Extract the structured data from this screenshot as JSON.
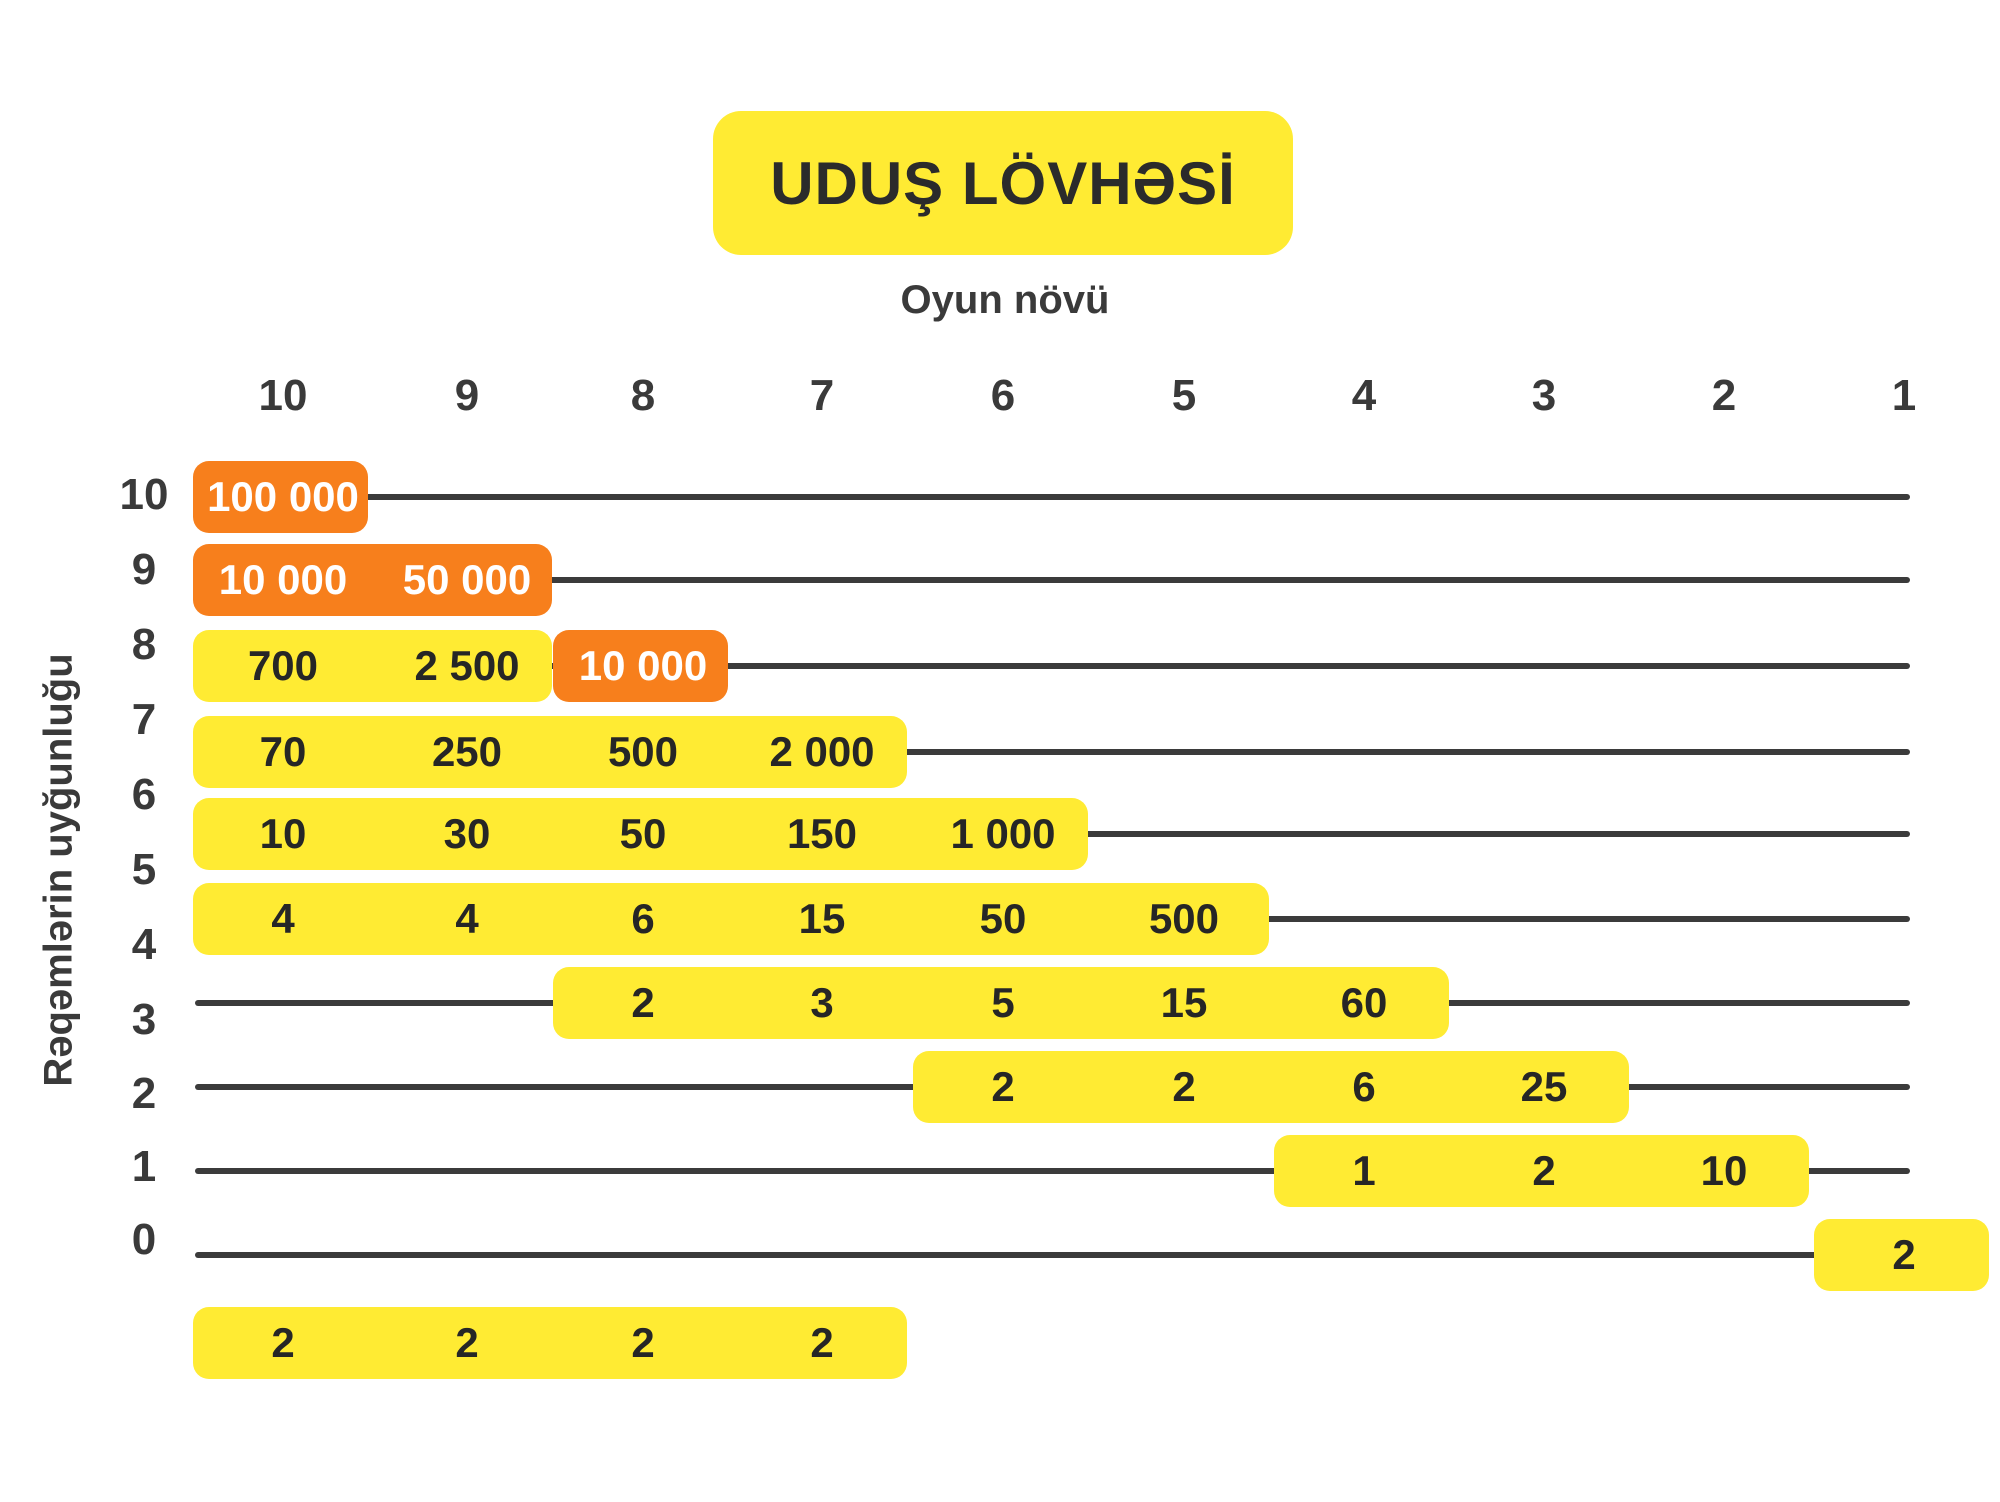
{
  "title": "UDUŞ LÖVHƏSİ",
  "subtitle": "Oyun növü",
  "colors": {
    "yellow": "#FFEB33",
    "orange": "#F77F1C",
    "line": "#3b3b3b",
    "text": "#2f2f2f"
  },
  "chart_data": {
    "type": "table",
    "title": "UDUŞ LÖVHƏSİ",
    "xlabel": "Oyun növü",
    "ylabel": "Rəqəmlərin uyğunluğu",
    "columns": [
      "10",
      "9",
      "8",
      "7",
      "6",
      "5",
      "4",
      "3",
      "2",
      "1"
    ],
    "rows": [
      "10",
      "9",
      "8",
      "7",
      "6",
      "5",
      "4",
      "3",
      "2",
      "1",
      "0"
    ],
    "bands": [
      {
        "row": "10",
        "highlight": "orange",
        "cells": [
          {
            "col": "10",
            "value": "100 000"
          }
        ]
      },
      {
        "row": "9",
        "highlight": "orange",
        "cells": [
          {
            "col": "10",
            "value": "10 000"
          },
          {
            "col": "9",
            "value": "50 000"
          }
        ]
      },
      {
        "row": "8",
        "highlight": "yellow",
        "cells": [
          {
            "col": "10",
            "value": "700"
          },
          {
            "col": "9",
            "value": "2 500"
          }
        ]
      },
      {
        "row": "8",
        "highlight": "orange",
        "cells": [
          {
            "col": "8",
            "value": "10 000"
          }
        ]
      },
      {
        "row": "7",
        "highlight": "yellow",
        "cells": [
          {
            "col": "10",
            "value": "70"
          },
          {
            "col": "9",
            "value": "250"
          },
          {
            "col": "8",
            "value": "500"
          },
          {
            "col": "7",
            "value": "2 000"
          }
        ]
      },
      {
        "row": "6",
        "highlight": "yellow",
        "cells": [
          {
            "col": "10",
            "value": "10"
          },
          {
            "col": "9",
            "value": "30"
          },
          {
            "col": "8",
            "value": "50"
          },
          {
            "col": "7",
            "value": "150"
          },
          {
            "col": "6",
            "value": "1 000"
          }
        ]
      },
      {
        "row": "5",
        "highlight": "yellow",
        "cells": [
          {
            "col": "10",
            "value": "4"
          },
          {
            "col": "9",
            "value": "4"
          },
          {
            "col": "8",
            "value": "6"
          },
          {
            "col": "7",
            "value": "15"
          },
          {
            "col": "6",
            "value": "50"
          },
          {
            "col": "5",
            "value": "500"
          }
        ]
      },
      {
        "row": "4",
        "highlight": "yellow",
        "cells": [
          {
            "col": "8",
            "value": "2"
          },
          {
            "col": "7",
            "value": "3"
          },
          {
            "col": "6",
            "value": "5"
          },
          {
            "col": "5",
            "value": "15"
          },
          {
            "col": "4",
            "value": "60"
          }
        ]
      },
      {
        "row": "3",
        "highlight": "yellow",
        "cells": [
          {
            "col": "6",
            "value": "2"
          },
          {
            "col": "5",
            "value": "2"
          },
          {
            "col": "4",
            "value": "6"
          },
          {
            "col": "3",
            "value": "25"
          }
        ]
      },
      {
        "row": "2",
        "highlight": "yellow",
        "cells": [
          {
            "col": "4",
            "value": "1"
          },
          {
            "col": "3",
            "value": "2"
          },
          {
            "col": "2",
            "value": "10"
          }
        ]
      },
      {
        "row": "1",
        "highlight": "yellow",
        "cells": [
          {
            "col": "1",
            "value": "2"
          }
        ]
      },
      {
        "row": "0",
        "highlight": "yellow",
        "cells": [
          {
            "col": "10",
            "value": "2"
          },
          {
            "col": "9",
            "value": "2"
          },
          {
            "col": "8",
            "value": "2"
          },
          {
            "col": "7",
            "value": "2"
          }
        ]
      }
    ]
  }
}
